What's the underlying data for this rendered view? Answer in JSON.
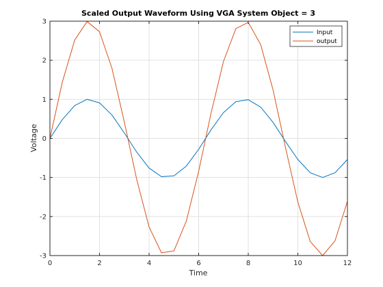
{
  "chart_data": {
    "type": "line",
    "title": "Scaled Output Waveform Using VGA System Object = 3",
    "xlabel": "Time",
    "ylabel": "Voltage",
    "xlim": [
      0,
      12
    ],
    "ylim": [
      -3,
      3
    ],
    "xticks": [
      0,
      2,
      4,
      6,
      8,
      10,
      12
    ],
    "yticks": [
      -3,
      -2,
      -1,
      0,
      1,
      2,
      3
    ],
    "xtick_labels": [
      "0",
      "2",
      "4",
      "6",
      "8",
      "10",
      "12"
    ],
    "ytick_labels": [
      "-3",
      "-2",
      "-1",
      "0",
      "1",
      "2",
      "3"
    ],
    "grid": true,
    "legend_position": "top-right",
    "x": [
      0,
      0.5,
      1,
      1.5,
      2,
      2.5,
      3,
      3.5,
      4,
      4.5,
      5,
      5.5,
      6,
      6.5,
      7,
      7.5,
      8,
      8.5,
      9,
      9.5,
      10,
      10.5,
      11,
      11.5,
      12
    ],
    "series": [
      {
        "name": "Input",
        "color": "#0072BD",
        "values": [
          0.0,
          0.48,
          0.84,
          1.0,
          0.91,
          0.6,
          0.14,
          -0.35,
          -0.76,
          -0.98,
          -0.96,
          -0.71,
          -0.28,
          0.22,
          0.66,
          0.94,
          0.99,
          0.8,
          0.41,
          -0.08,
          -0.54,
          -0.88,
          -1.0,
          -0.88,
          -0.54
        ]
      },
      {
        "name": "output",
        "color": "#D95319",
        "values": [
          0.0,
          1.44,
          2.52,
          2.99,
          2.73,
          1.8,
          0.42,
          -1.05,
          -2.27,
          -2.93,
          -2.88,
          -2.12,
          -0.84,
          0.65,
          1.97,
          2.81,
          2.97,
          2.4,
          1.24,
          -0.23,
          -1.63,
          -2.64,
          -3.0,
          -2.62,
          -1.61
        ]
      }
    ]
  }
}
